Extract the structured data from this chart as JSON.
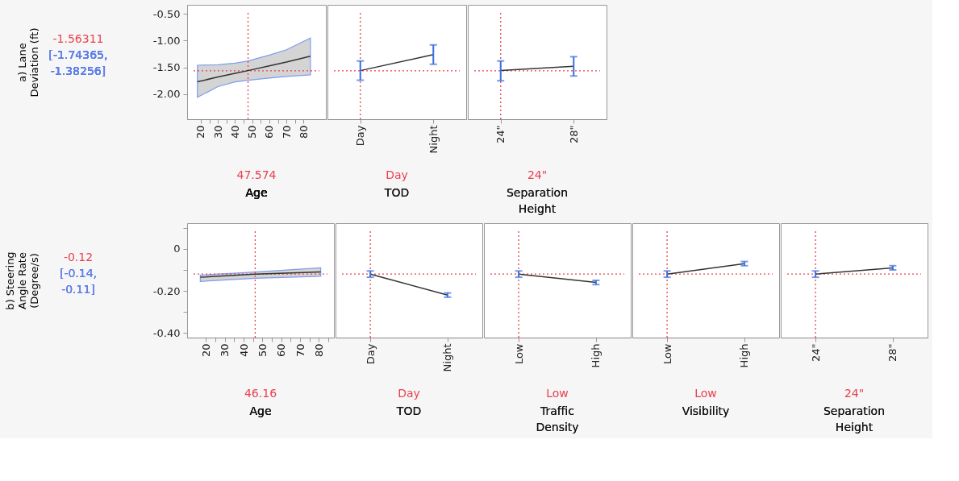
{
  "chart_data": [
    {
      "type": "line",
      "ylabel": "a) Lane Deviation (ft)",
      "xlabel": "Age",
      "x": [
        18,
        30,
        40,
        47.574,
        60,
        70,
        84
      ],
      "xlim": [
        12,
        93
      ],
      "xticks": [
        20,
        {
          "value": 25,
          "label": null
        },
        30,
        {
          "value": 35,
          "label": null
        },
        40,
        {
          "value": 45,
          "label": null
        },
        50,
        {
          "value": 55,
          "label": null
        },
        60,
        {
          "value": 65,
          "label": null
        },
        70,
        {
          "value": 75,
          "label": null
        },
        80
      ],
      "ylim": [
        -2.47,
        -0.33
      ],
      "yticks": [
        {
          "value": -0.5,
          "label": "-0.50"
        },
        {
          "value": -1.0,
          "label": "-1.00"
        },
        {
          "value": -1.5,
          "label": "-1.50"
        },
        {
          "value": -2.0,
          "label": "-2.00"
        }
      ],
      "series": [
        {
          "color": "#333333",
          "values": [
            -1.77,
            -1.68,
            -1.61,
            -1.56,
            -1.47,
            -1.4,
            -1.29
          ],
          "lower": [
            -2.06,
            -1.86,
            -1.77,
            -1.74,
            -1.7,
            -1.67,
            -1.64
          ],
          "upper": [
            -1.46,
            -1.45,
            -1.42,
            -1.38,
            -1.27,
            -1.17,
            -0.95
          ]
        }
      ],
      "ref_lines": [
        {
          "axis": "x",
          "value": 47.574,
          "label": "47.574",
          "color": "#e8414f",
          "line_style": "dotted"
        },
        {
          "axis": "y",
          "value": -1.56311,
          "label": "-1.56311",
          "color": "#e8414f",
          "line_style": "dotted"
        }
      ],
      "annotations": [
        "[-1.74365, -1.38256]"
      ],
      "marker": "none",
      "line_style": "solid",
      "grid": false,
      "legend": false
    },
    {
      "type": "line",
      "xlabel": "TOD",
      "categories": [
        "Day",
        "Night"
      ],
      "ylim": [
        -2.47,
        -0.33
      ],
      "tick_labels": "x",
      "series": [
        {
          "color": "#333333",
          "values": [
            -1.56,
            -1.26
          ],
          "errors": [
            [
              -1.74,
              -1.38
            ],
            [
              -1.44,
              -1.08
            ]
          ]
        }
      ],
      "ref_lines": [
        {
          "axis": "x",
          "value": "Day",
          "label": "Day",
          "color": "#e8414f",
          "line_style": "dotted"
        },
        {
          "axis": "y",
          "value": -1.56311,
          "color": "#e8414f",
          "line_style": "dotted"
        }
      ],
      "marker": "none",
      "line_style": "solid",
      "grid": false,
      "legend": false
    },
    {
      "type": "line",
      "xlabel": "Separation Height",
      "categories": [
        "24\"",
        "28\""
      ],
      "ylim": [
        -2.47,
        -0.33
      ],
      "tick_labels": "x",
      "series": [
        {
          "color": "#333333",
          "values": [
            -1.56,
            -1.48
          ],
          "errors": [
            [
              -1.75,
              -1.38
            ],
            [
              -1.66,
              -1.3
            ]
          ]
        }
      ],
      "ref_lines": [
        {
          "axis": "x",
          "value": "24\"",
          "label": "24\"",
          "color": "#e8414f",
          "line_style": "dotted"
        },
        {
          "axis": "y",
          "value": -1.56311,
          "color": "#e8414f",
          "line_style": "dotted"
        }
      ],
      "marker": "none",
      "line_style": "solid",
      "grid": false,
      "legend": false
    },
    {
      "type": "line",
      "ylabel": "b) Steering Angle Rate (Degree/s)",
      "xlabel": "Age",
      "x": [
        17,
        46.16,
        81
      ],
      "xlim": [
        10,
        88
      ],
      "xticks": [
        20,
        {
          "value": 25,
          "label": null
        },
        30,
        {
          "value": 35,
          "label": null
        },
        40,
        {
          "value": 45,
          "label": null
        },
        50,
        {
          "value": 55,
          "label": null
        },
        60,
        {
          "value": 65,
          "label": null
        },
        70,
        {
          "value": 75,
          "label": null
        },
        80,
        {
          "value": 85,
          "label": null
        }
      ],
      "ylim": [
        -0.423,
        0.123
      ],
      "yticks": [
        {
          "value": 0.1,
          "label": null
        },
        0,
        {
          "value": -0.1,
          "label": null
        },
        {
          "value": -0.2,
          "label": "-0.20"
        },
        {
          "value": -0.3,
          "label": null
        },
        {
          "value": -0.4,
          "label": "-0.40"
        }
      ],
      "series": [
        {
          "color": "#333333",
          "values": [
            -0.135,
            -0.12,
            -0.11
          ],
          "lower": [
            -0.155,
            -0.14,
            -0.13
          ],
          "upper": [
            -0.125,
            -0.11,
            -0.09
          ]
        }
      ],
      "ref_lines": [
        {
          "axis": "x",
          "value": 46.16,
          "label": "46.16",
          "color": "#e8414f",
          "line_style": "dotted"
        },
        {
          "axis": "y",
          "value": -0.12,
          "label": "-0.12",
          "color": "#e8414f",
          "line_style": "dotted"
        }
      ],
      "annotations": [
        "[-0.14, -0.11]"
      ],
      "marker": "none",
      "line_style": "solid",
      "grid": false,
      "legend": false
    },
    {
      "type": "line",
      "xlabel": "TOD",
      "categories": [
        "Day",
        "Night"
      ],
      "ylim": [
        -0.423,
        0.123
      ],
      "tick_labels": "x",
      "series": [
        {
          "color": "#333333",
          "values": [
            -0.12,
            -0.22
          ],
          "errors": [
            [
              -0.135,
              -0.105
            ],
            [
              -0.23,
              -0.21
            ]
          ]
        }
      ],
      "ref_lines": [
        {
          "axis": "x",
          "value": "Day",
          "label": "Day",
          "color": "#e8414f",
          "line_style": "dotted"
        },
        {
          "axis": "y",
          "value": -0.12,
          "color": "#e8414f",
          "line_style": "dotted"
        }
      ],
      "marker": "none",
      "line_style": "solid",
      "grid": false,
      "legend": false
    },
    {
      "type": "line",
      "xlabel": "Traffic Density",
      "categories": [
        "Low",
        "High"
      ],
      "ylim": [
        -0.423,
        0.123
      ],
      "tick_labels": "x",
      "series": [
        {
          "color": "#333333",
          "values": [
            -0.12,
            -0.16
          ],
          "errors": [
            [
              -0.135,
              -0.105
            ],
            [
              -0.17,
              -0.15
            ]
          ]
        }
      ],
      "ref_lines": [
        {
          "axis": "x",
          "value": "Low",
          "label": "Low",
          "color": "#e8414f",
          "line_style": "dotted"
        },
        {
          "axis": "y",
          "value": -0.12,
          "color": "#e8414f",
          "line_style": "dotted"
        }
      ],
      "marker": "none",
      "line_style": "solid",
      "grid": false,
      "legend": false
    },
    {
      "type": "line",
      "xlabel": "Visibility",
      "categories": [
        "Low",
        "High"
      ],
      "ylim": [
        -0.423,
        0.123
      ],
      "tick_labels": "x",
      "series": [
        {
          "color": "#333333",
          "values": [
            -0.12,
            -0.07
          ],
          "errors": [
            [
              -0.135,
              -0.105
            ],
            [
              -0.08,
              -0.06
            ]
          ]
        }
      ],
      "ref_lines": [
        {
          "axis": "x",
          "value": "Low",
          "label": "Low",
          "color": "#e8414f",
          "line_style": "dotted"
        },
        {
          "axis": "y",
          "value": -0.12,
          "color": "#e8414f",
          "line_style": "dotted"
        }
      ],
      "marker": "none",
      "line_style": "solid",
      "grid": false,
      "legend": false
    },
    {
      "type": "line",
      "xlabel": "Separation Height",
      "categories": [
        "24\"",
        "28\""
      ],
      "ylim": [
        -0.423,
        0.123
      ],
      "tick_labels": "x",
      "series": [
        {
          "color": "#333333",
          "values": [
            -0.12,
            -0.09
          ],
          "errors": [
            [
              -0.135,
              -0.105
            ],
            [
              -0.1,
              -0.08
            ]
          ]
        }
      ],
      "ref_lines": [
        {
          "axis": "x",
          "value": "24\"",
          "label": "24\"",
          "color": "#e8414f",
          "line_style": "dotted"
        },
        {
          "axis": "y",
          "value": -0.12,
          "color": "#e8414f",
          "line_style": "dotted"
        }
      ],
      "marker": "none",
      "line_style": "solid",
      "grid": false,
      "legend": false
    }
  ]
}
